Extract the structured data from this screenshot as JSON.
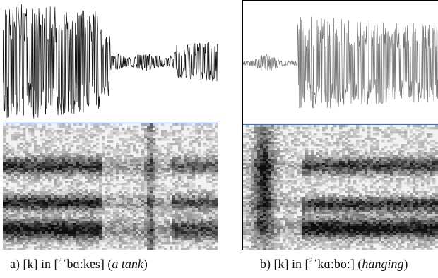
{
  "figure": {
    "panels": [
      {
        "id": "a",
        "caption_prefix": "a) [k] in [",
        "caption_tone": "2",
        "caption_ipa": "ˈbɑːkɐs]",
        "caption_paren_open": " (",
        "caption_gloss": "a tank",
        "caption_paren_close": ")"
      },
      {
        "id": "b",
        "caption_prefix": "b) [k] in [",
        "caption_tone": "2",
        "caption_ipa": "ˈkɑːboː]",
        "caption_paren_open": " (",
        "caption_gloss": "hanging",
        "caption_paren_close": ")"
      }
    ],
    "colors": {
      "waveform_a": "#111111",
      "waveform_b": "#777777",
      "baseline": "#4a6fa5",
      "spectrogram_dark": "#141414",
      "spectrogram_light": "#f2f2f2"
    }
  }
}
